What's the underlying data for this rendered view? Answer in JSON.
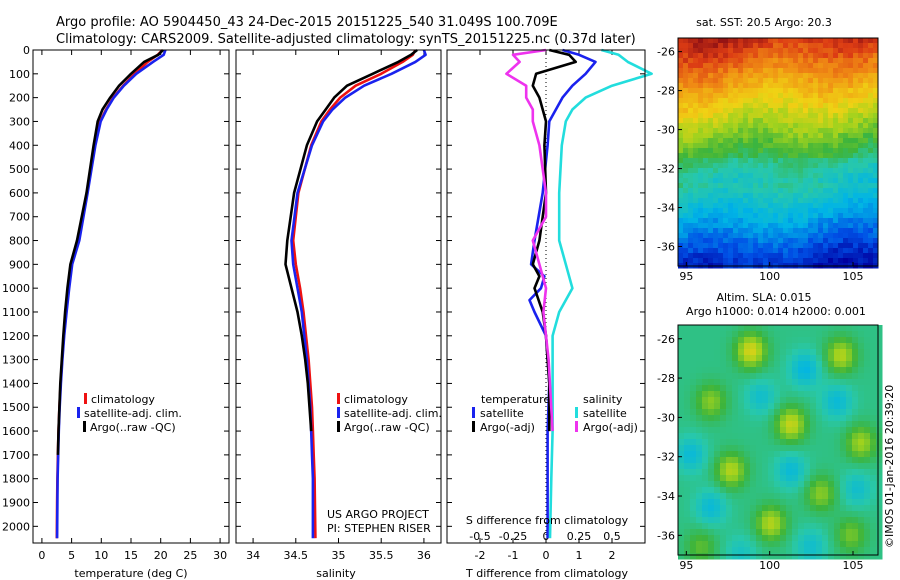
{
  "header": {
    "line1": "Argo profile: AO 5904450_43 24-Dec-2015 20151225_540 31.049S 100.709E",
    "line2": "Climatology: CARS2009. Satellite-adjusted climatology: synTS_20151225.nc (0.37d later)"
  },
  "colors": {
    "climatology": "#ee1111",
    "satellite": "#1a22ee",
    "argo": "#000000",
    "cyan": "#22dddd",
    "magenta": "#ee33ee"
  },
  "chart_data": [
    {
      "type": "line",
      "name": "temperature-profile",
      "xlabel": "temperature (deg C)",
      "xlim": [
        -1.5,
        31.5
      ],
      "ylim": [
        2070,
        0
      ],
      "xticks": [
        0,
        5,
        10,
        15,
        20,
        25,
        30
      ],
      "yticks": [
        0,
        100,
        200,
        300,
        400,
        500,
        600,
        700,
        800,
        900,
        1000,
        1100,
        1200,
        1300,
        1400,
        1500,
        1600,
        1700,
        1800,
        1900,
        2000
      ],
      "legend": [
        "climatology",
        "satellite-adj. clim.",
        "Argo(..raw -QC)"
      ],
      "legend_position": "lower-right",
      "series": [
        {
          "key": "climatology",
          "color": "#ee1111",
          "x": [
            20.3,
            19.5,
            17.8,
            15.6,
            13.7,
            12.0,
            10.8,
            9.8,
            8.9,
            7.6,
            6.2,
            5.0,
            4.5,
            4.1,
            3.7,
            3.4,
            3.15,
            2.95,
            2.8,
            2.7,
            2.6,
            2.55,
            2.5
          ],
          "y": [
            0,
            20,
            50,
            100,
            150,
            200,
            250,
            300,
            400,
            600,
            800,
            900,
            1000,
            1100,
            1200,
            1300,
            1400,
            1500,
            1600,
            1700,
            1800,
            1900,
            2050
          ]
        },
        {
          "key": "satellite",
          "color": "#1a22ee",
          "x": [
            20.8,
            20.5,
            18.7,
            15.9,
            13.8,
            12.1,
            10.9,
            9.9,
            9.0,
            7.7,
            6.3,
            5.1,
            4.6,
            4.15,
            3.75,
            3.45,
            3.2,
            3.0,
            2.85,
            2.75,
            2.65,
            2.6,
            2.55
          ],
          "y": [
            0,
            20,
            50,
            100,
            150,
            200,
            250,
            300,
            400,
            600,
            800,
            900,
            1000,
            1100,
            1200,
            1300,
            1400,
            1500,
            1600,
            1700,
            1800,
            1900,
            2050
          ]
        },
        {
          "key": "argo",
          "color": "#000000",
          "x": [
            20.4,
            19.6,
            17.2,
            15.0,
            13.0,
            11.5,
            10.2,
            9.4,
            8.7,
            7.5,
            5.9,
            4.8,
            4.3,
            3.9,
            3.6,
            3.35,
            3.1,
            2.95,
            2.8,
            2.7
          ],
          "y": [
            0,
            20,
            50,
            100,
            150,
            200,
            250,
            300,
            400,
            600,
            800,
            900,
            1000,
            1100,
            1200,
            1300,
            1400,
            1500,
            1600,
            1700
          ]
        }
      ]
    },
    {
      "type": "line",
      "name": "salinity-profile",
      "xlabel": "salinity",
      "xlim": [
        33.8,
        36.2
      ],
      "ylim": [
        2070,
        0
      ],
      "xticks": [
        34,
        34.5,
        35,
        35.5,
        36
      ],
      "xticklabels": [
        "34",
        "34.5",
        "35",
        "35.5",
        "36"
      ],
      "legend": [
        "climatology",
        "satellite-adj. clim.",
        "Argo(..raw -QC)"
      ],
      "legend_position": "lower-right",
      "annotation": [
        "US ARGO PROJECT",
        "PI: STEPHEN RISER"
      ],
      "series": [
        {
          "key": "climatology",
          "color": "#ee1111",
          "x": [
            35.9,
            35.87,
            35.75,
            35.5,
            35.2,
            35.02,
            34.9,
            34.8,
            34.68,
            34.53,
            34.47,
            34.5,
            34.55,
            34.59,
            34.62,
            34.65,
            34.67,
            34.69,
            34.7,
            34.71,
            34.72,
            34.73
          ],
          "y": [
            0,
            20,
            50,
            100,
            150,
            200,
            250,
            300,
            400,
            600,
            800,
            900,
            1000,
            1100,
            1200,
            1300,
            1400,
            1500,
            1600,
            1700,
            1800,
            2050
          ]
        },
        {
          "key": "satellite",
          "color": "#1a22ee",
          "x": [
            36.0,
            36.02,
            35.9,
            35.62,
            35.3,
            35.08,
            34.93,
            34.82,
            34.69,
            34.52,
            34.45,
            34.47,
            34.52,
            34.57,
            34.6,
            34.63,
            34.65,
            34.67,
            34.68,
            34.69,
            34.7,
            34.7
          ],
          "y": [
            0,
            20,
            50,
            100,
            150,
            200,
            250,
            300,
            400,
            600,
            800,
            900,
            1000,
            1100,
            1200,
            1300,
            1400,
            1500,
            1600,
            1700,
            1800,
            2050
          ]
        },
        {
          "key": "argo",
          "color": "#000000",
          "x": [
            35.92,
            35.85,
            35.7,
            35.4,
            35.1,
            34.95,
            34.85,
            34.75,
            34.63,
            34.48,
            34.4,
            34.38,
            34.45,
            34.52,
            34.57,
            34.61,
            34.64,
            34.66,
            34.68
          ],
          "y": [
            0,
            20,
            50,
            100,
            150,
            200,
            250,
            300,
            400,
            600,
            800,
            900,
            1000,
            1100,
            1200,
            1300,
            1400,
            1500,
            1600
          ]
        }
      ]
    },
    {
      "type": "line",
      "name": "difference-profile",
      "xlabel": "T difference from climatology",
      "top_axis_label": "S difference from climatology",
      "xlim": [
        -3,
        3
      ],
      "ylim": [
        2070,
        0
      ],
      "xticks": [
        -2,
        -1,
        0,
        1,
        2
      ],
      "xticklabels": [
        "-2",
        "-1",
        "0",
        "1",
        "2"
      ],
      "s_xticks": [
        -0.5,
        -0.25,
        0,
        0.25,
        0.5
      ],
      "s_xticklabels": [
        "-0.5",
        "-0.25",
        "0",
        "0.25",
        "0.5"
      ],
      "s_scale": 4,
      "legend_temperature_title": "temperature",
      "legend_salinity_title": "salinity",
      "legend_temperature": [
        "satellite",
        "Argo(-adj)"
      ],
      "legend_salinity": [
        "satellite",
        "Argo(-adj)"
      ],
      "series": [
        {
          "key": "t-satellite",
          "color": "#1a22ee",
          "x": [
            0.5,
            1.0,
            1.5,
            1.2,
            0.8,
            0.5,
            0.3,
            0.1,
            0.05,
            -0.1,
            -0.35,
            -0.45,
            -0.05,
            -0.15,
            -0.5,
            -0.35,
            0.0,
            0.1,
            0.05,
            0.05,
            0.05,
            0.05
          ],
          "y": [
            0,
            20,
            50,
            100,
            150,
            200,
            250,
            300,
            400,
            600,
            800,
            900,
            950,
            1000,
            1050,
            1100,
            1200,
            1400,
            1600,
            1800,
            1900,
            2050
          ]
        },
        {
          "key": "t-argo",
          "color": "#000000",
          "x": [
            0.1,
            0.7,
            0.9,
            -0.3,
            -0.4,
            -0.2,
            -0.1,
            0.0,
            -0.05,
            0.0,
            -0.2,
            -0.4,
            -0.2,
            -0.35,
            -0.1,
            0.0,
            0.05,
            0.1,
            0.1
          ],
          "y": [
            0,
            20,
            50,
            100,
            150,
            200,
            250,
            300,
            400,
            600,
            800,
            900,
            950,
            1000,
            1100,
            1200,
            1300,
            1400,
            1600
          ]
        },
        {
          "key": "s-satellite",
          "color": "#22dddd",
          "x": [
            0.42,
            0.55,
            0.62,
            0.8,
            0.5,
            0.3,
            0.2,
            0.15,
            0.12,
            0.1,
            0.1,
            0.15,
            0.2,
            0.1,
            0.05,
            0.05,
            0.05,
            0.05,
            0.04,
            0.03
          ],
          "y": [
            0,
            20,
            50,
            100,
            150,
            200,
            250,
            300,
            400,
            600,
            800,
            900,
            1000,
            1100,
            1200,
            1300,
            1400,
            1600,
            1800,
            2050
          ]
        },
        {
          "key": "s-argo",
          "color": "#ee33ee",
          "x": [
            0.0,
            -0.25,
            -0.2,
            -0.3,
            -0.15,
            -0.15,
            -0.1,
            -0.1,
            -0.05,
            0.0,
            0.0,
            -0.1,
            -0.05,
            0.0,
            -0.02,
            0.02,
            0.05
          ],
          "y": [
            0,
            20,
            50,
            100,
            150,
            200,
            250,
            300,
            400,
            600,
            700,
            800,
            900,
            1000,
            1100,
            1300,
            1600
          ]
        }
      ]
    },
    {
      "type": "heatmap",
      "name": "sst-map",
      "title": "sat. SST: 20.5 Argo: 20.3",
      "xlim": [
        94.5,
        106.5
      ],
      "ylim": [
        -37,
        -25.3
      ],
      "xticks": [
        95,
        100,
        105
      ],
      "yticks": [
        -26,
        -28,
        -30,
        -32,
        -34,
        -36
      ],
      "xticklabels": [
        "95",
        "100",
        "105"
      ],
      "yticklabels": [
        "-26",
        "-28",
        "-30",
        "-32",
        "-34",
        "-36"
      ]
    },
    {
      "type": "heatmap",
      "name": "sla-map",
      "title_line1": "Altim. SLA: 0.015",
      "title_line2": "Argo h1000: 0.014 h2000: 0.001",
      "xlim": [
        94.5,
        106.5
      ],
      "ylim": [
        -37,
        -25.3
      ],
      "xticks": [
        95,
        100,
        105
      ],
      "yticks": [
        -26,
        -28,
        -30,
        -32,
        -34,
        -36
      ],
      "xticklabels": [
        "95",
        "100",
        "105"
      ],
      "yticklabels": [
        "-26",
        "-28",
        "-30",
        "-32",
        "-34",
        "-36"
      ]
    }
  ],
  "credit": "©IMOS 01-Jan-2016 20:39:20"
}
